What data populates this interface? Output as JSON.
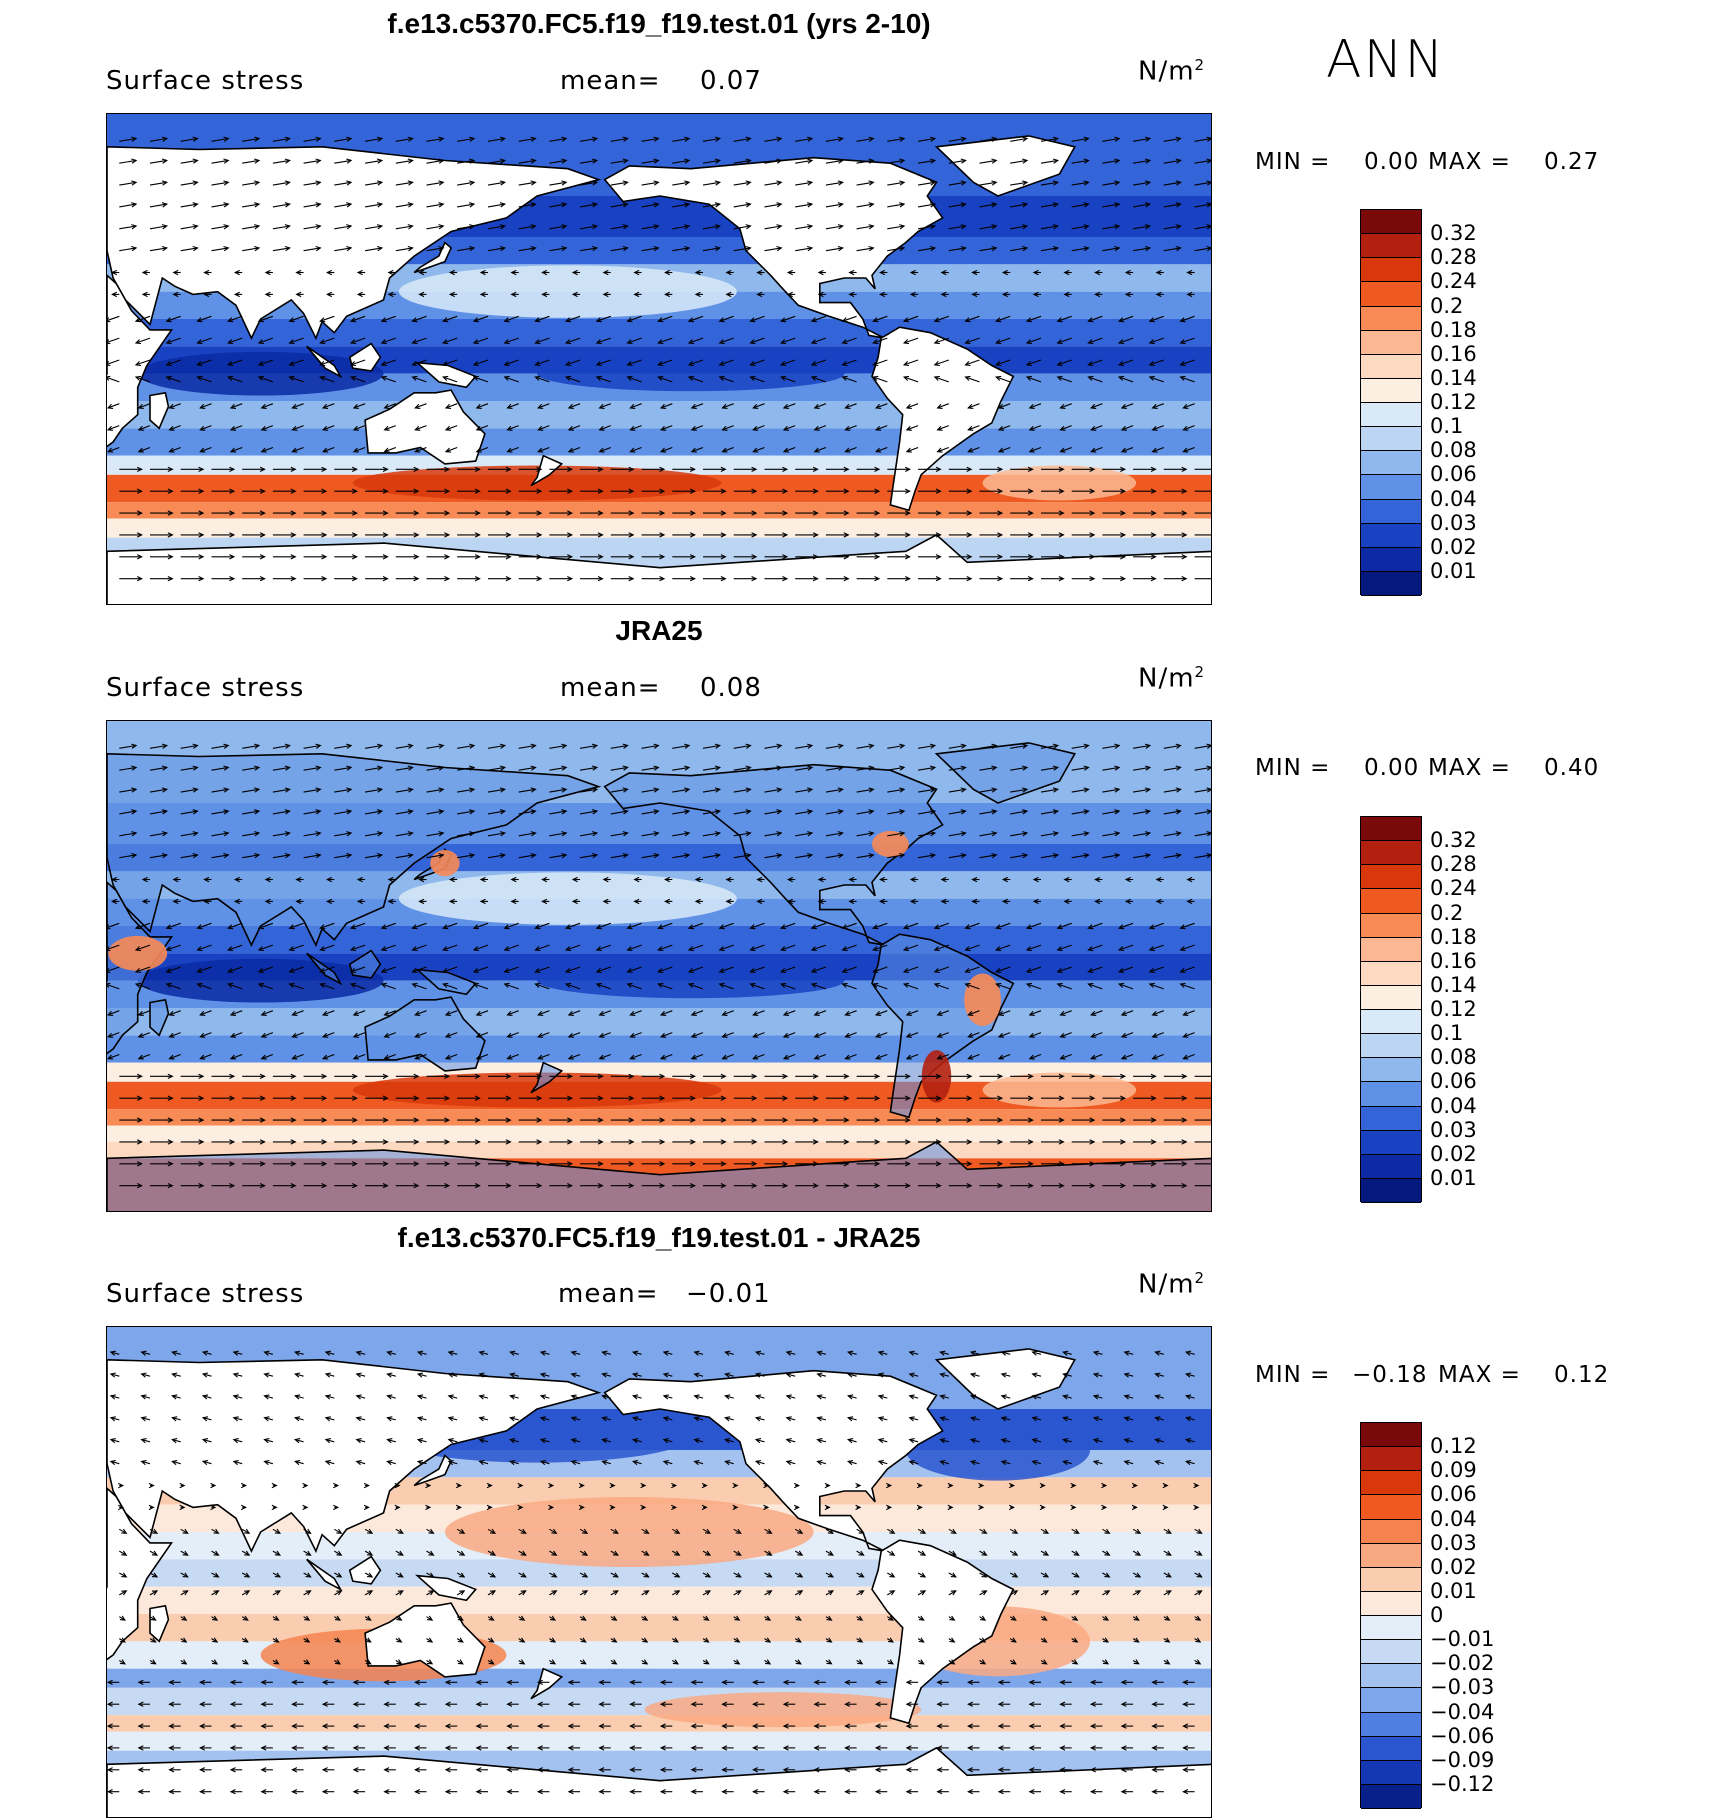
{
  "season": "ANN",
  "panels": [
    {
      "title": "f.e13.c5370.FC5.f19_f19.test.01 (yrs 2-10)",
      "variable": "Surface stress",
      "mean_label": "mean=",
      "mean": "0.07",
      "units_base": "N/m",
      "units_exp": "2",
      "min_label": "MIN =",
      "min": "0.00",
      "max_label": "MAX =",
      "max": "0.27",
      "levels": [
        "0.32",
        "0.28",
        "0.24",
        "0.2",
        "0.18",
        "0.16",
        "0.14",
        "0.12",
        "0.1",
        "0.08",
        "0.06",
        "0.04",
        "0.03",
        "0.02",
        "0.01"
      ],
      "palette": [
        "#7a0a0a",
        "#b3200f",
        "#d8380c",
        "#ef5a22",
        "#f88a55",
        "#fbb892",
        "#fdd9c1",
        "#fdeee2",
        "#d9e9f8",
        "#bcd5f2",
        "#8fb8ec",
        "#5f92e6",
        "#3364d8",
        "#1842c2",
        "#0b2aa3",
        "#05187c"
      ],
      "masked_land": true
    },
    {
      "title": "JRA25",
      "variable": "Surface stress",
      "mean_label": "mean=",
      "mean": "0.08",
      "units_base": "N/m",
      "units_exp": "2",
      "min_label": "MIN =",
      "min": "0.00",
      "max_label": "MAX =",
      "max": "0.40",
      "levels": [
        "0.32",
        "0.28",
        "0.24",
        "0.2",
        "0.18",
        "0.16",
        "0.14",
        "0.12",
        "0.1",
        "0.08",
        "0.06",
        "0.04",
        "0.03",
        "0.02",
        "0.01"
      ],
      "palette": [
        "#7a0a0a",
        "#b3200f",
        "#d8380c",
        "#ef5a22",
        "#f88a55",
        "#fbb892",
        "#fdd9c1",
        "#fdeee2",
        "#d9e9f8",
        "#bcd5f2",
        "#8fb8ec",
        "#5f92e6",
        "#3364d8",
        "#1842c2",
        "#0b2aa3",
        "#05187c"
      ],
      "masked_land": false
    },
    {
      "title": "f.e13.c5370.FC5.f19_f19.test.01 - JRA25",
      "variable": "Surface stress",
      "mean_label": "mean=",
      "mean": "−0.01",
      "units_base": "N/m",
      "units_exp": "2",
      "min_label": "MIN =",
      "min": "−0.18",
      "max_label": "MAX =",
      "max": "0.12",
      "levels": [
        "0.12",
        "0.09",
        "0.06",
        "0.04",
        "0.03",
        "0.02",
        "0.01",
        "0",
        "−0.01",
        "−0.02",
        "−0.03",
        "−0.04",
        "−0.06",
        "−0.09",
        "−0.12"
      ],
      "palette": [
        "#7a0a0a",
        "#b3200f",
        "#d8380c",
        "#f05a22",
        "#f6834f",
        "#f9a982",
        "#fbcdb0",
        "#fde9dc",
        "#e4eef9",
        "#c6daf4",
        "#a3c2ef",
        "#7ea6ea",
        "#4f7fe0",
        "#2a56cf",
        "#1437b3",
        "#08208a"
      ],
      "masked_land": true
    }
  ],
  "chart_data": [
    {
      "type": "heatmap",
      "title": "f.e13.c5370.FC5.f19_f19.test.01 (yrs 2-10)",
      "variable": "Surface stress",
      "units": "N/m^2",
      "mean": 0.07,
      "min": 0.0,
      "max": 0.27,
      "contour_levels": [
        0.01,
        0.02,
        0.03,
        0.04,
        0.06,
        0.08,
        0.1,
        0.12,
        0.14,
        0.16,
        0.18,
        0.2,
        0.24,
        0.28,
        0.32
      ],
      "overlay": "wind stress vectors",
      "features": "strong westerly stress band over Southern Ocean (~0.2-0.28), weak stress in tropics"
    },
    {
      "type": "heatmap",
      "title": "JRA25",
      "variable": "Surface stress",
      "units": "N/m^2",
      "mean": 0.08,
      "min": 0.0,
      "max": 0.4,
      "contour_levels": [
        0.01,
        0.02,
        0.03,
        0.04,
        0.06,
        0.08,
        0.1,
        0.12,
        0.14,
        0.16,
        0.18,
        0.2,
        0.24,
        0.28,
        0.32
      ],
      "overlay": "wind stress vectors",
      "features": "includes land points; strong Southern Ocean westerlies"
    },
    {
      "type": "heatmap",
      "title": "f.e13.c5370.FC5.f19_f19.test.01 - JRA25",
      "variable": "Surface stress",
      "units": "N/m^2",
      "mean": -0.01,
      "min": -0.18,
      "max": 0.12,
      "contour_levels": [
        -0.12,
        -0.09,
        -0.06,
        -0.04,
        -0.03,
        -0.02,
        -0.01,
        0,
        0.01,
        0.02,
        0.03,
        0.04,
        0.06,
        0.09,
        0.12
      ],
      "overlay": "difference stress vectors",
      "features": "negative bias in North Pacific/Atlantic storm tracks, positive bias in subtropics"
    }
  ]
}
